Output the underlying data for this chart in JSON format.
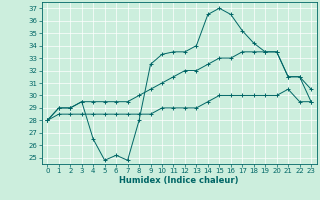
{
  "title": "",
  "xlabel": "Humidex (Indice chaleur)",
  "ylabel": "",
  "bg_color": "#cceedd",
  "line_color": "#006666",
  "xlim": [
    -0.5,
    23.5
  ],
  "ylim": [
    24.5,
    37.5
  ],
  "xticks": [
    0,
    1,
    2,
    3,
    4,
    5,
    6,
    7,
    8,
    9,
    10,
    11,
    12,
    13,
    14,
    15,
    16,
    17,
    18,
    19,
    20,
    21,
    22,
    23
  ],
  "yticks": [
    25,
    26,
    27,
    28,
    29,
    30,
    31,
    32,
    33,
    34,
    35,
    36,
    37
  ],
  "line1_x": [
    0,
    1,
    2,
    3,
    4,
    5,
    6,
    7,
    8,
    9,
    10,
    11,
    12,
    13,
    14,
    15,
    16,
    17,
    18,
    19,
    20,
    21,
    22,
    23
  ],
  "line1_y": [
    28,
    29,
    29,
    29.5,
    26.5,
    24.8,
    25.2,
    24.8,
    28,
    32.5,
    33.3,
    33.5,
    33.5,
    34,
    36.5,
    37,
    36.5,
    35.2,
    34.2,
    33.5,
    33.5,
    31.5,
    31.5,
    30.5
  ],
  "line2_x": [
    0,
    1,
    2,
    3,
    4,
    5,
    6,
    7,
    8,
    9,
    10,
    11,
    12,
    13,
    14,
    15,
    16,
    17,
    18,
    19,
    20,
    21,
    22,
    23
  ],
  "line2_y": [
    28,
    29,
    29,
    29.5,
    29.5,
    29.5,
    29.5,
    29.5,
    30,
    30.5,
    31,
    31.5,
    32,
    32,
    32.5,
    33,
    33,
    33.5,
    33.5,
    33.5,
    33.5,
    31.5,
    31.5,
    29.5
  ],
  "line3_x": [
    0,
    1,
    2,
    3,
    4,
    5,
    6,
    7,
    8,
    9,
    10,
    11,
    12,
    13,
    14,
    15,
    16,
    17,
    18,
    19,
    20,
    21,
    22,
    23
  ],
  "line3_y": [
    28,
    28.5,
    28.5,
    28.5,
    28.5,
    28.5,
    28.5,
    28.5,
    28.5,
    28.5,
    29,
    29,
    29,
    29,
    29.5,
    30,
    30,
    30,
    30,
    30,
    30,
    30.5,
    29.5,
    29.5
  ],
  "grid_color": "#ffffff",
  "font_size_tick": 5,
  "font_size_xlabel": 6,
  "marker_size": 2.5,
  "line_width": 0.7
}
